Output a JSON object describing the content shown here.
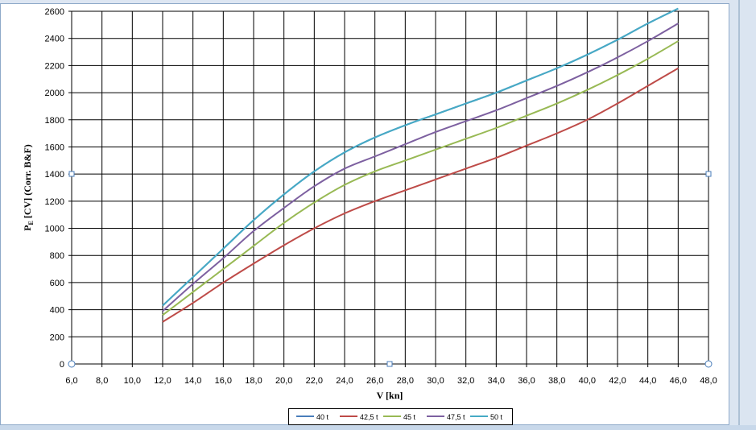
{
  "chart_data": {
    "type": "line",
    "y_label": {
      "main": "P",
      "sub": "E",
      "rest": " [CV] (Corr. B&F)"
    },
    "x_label": "V [kn]",
    "x": [
      12,
      14,
      16,
      18,
      20,
      22,
      24,
      26,
      28,
      30,
      32,
      34,
      36,
      38,
      40,
      42,
      44,
      46
    ],
    "series": [
      {
        "name": "40 t",
        "color": "#4a7ebb",
        "values": [
          430,
          640,
          850,
          1060,
          1250,
          1420,
          1560,
          1670,
          1760,
          1840,
          1920,
          2000,
          2090,
          2180,
          2280,
          2390,
          2510,
          2620
        ]
      },
      {
        "name": "42,5 t",
        "color": "#be4b48",
        "values": [
          310,
          450,
          600,
          740,
          875,
          1000,
          1110,
          1200,
          1280,
          1360,
          1440,
          1520,
          1610,
          1700,
          1800,
          1920,
          2050,
          2180
        ]
      },
      {
        "name": "45 t",
        "color": "#98b954",
        "values": [
          360,
          530,
          700,
          870,
          1040,
          1190,
          1320,
          1420,
          1500,
          1580,
          1660,
          1740,
          1830,
          1920,
          2020,
          2130,
          2250,
          2380
        ]
      },
      {
        "name": "47,5 t",
        "color": "#7d60a0",
        "values": [
          390,
          590,
          780,
          980,
          1150,
          1310,
          1440,
          1530,
          1620,
          1710,
          1790,
          1870,
          1960,
          2050,
          2150,
          2260,
          2380,
          2510
        ]
      },
      {
        "name": "50 t",
        "color": "#46aac5",
        "values": [
          430,
          640,
          850,
          1060,
          1250,
          1420,
          1560,
          1670,
          1760,
          1840,
          1920,
          2000,
          2090,
          2180,
          2280,
          2390,
          2510,
          2620
        ]
      }
    ],
    "xlim": [
      6,
      48
    ],
    "xticks": [
      {
        "value": 6,
        "label": "6,0"
      },
      {
        "value": 8,
        "label": "8,0"
      },
      {
        "value": 10,
        "label": "10,0"
      },
      {
        "value": 12,
        "label": "12,0"
      },
      {
        "value": 14,
        "label": "14,0"
      },
      {
        "value": 16,
        "label": "16,0"
      },
      {
        "value": 18,
        "label": "18,0"
      },
      {
        "value": 20,
        "label": "20,0"
      },
      {
        "value": 22,
        "label": "22,0"
      },
      {
        "value": 24,
        "label": "24,0"
      },
      {
        "value": 26,
        "label": "26,0"
      },
      {
        "value": 28,
        "label": "28,0"
      },
      {
        "value": 30,
        "label": "30,0"
      },
      {
        "value": 32,
        "label": "32,0"
      },
      {
        "value": 34,
        "label": "34,0"
      },
      {
        "value": 36,
        "label": "36,0"
      },
      {
        "value": 38,
        "label": "38,0"
      },
      {
        "value": 40,
        "label": "40,0"
      },
      {
        "value": 42,
        "label": "42,0"
      },
      {
        "value": 44,
        "label": "44,0"
      },
      {
        "value": 46,
        "label": "46,0"
      },
      {
        "value": 48,
        "label": "48,0"
      }
    ],
    "ylim": [
      0,
      2600
    ],
    "yticks": [
      0,
      200,
      400,
      600,
      800,
      1000,
      1200,
      1400,
      1600,
      1800,
      2000,
      2200,
      2400,
      2600
    ],
    "grid": true,
    "legend": "bottom"
  }
}
